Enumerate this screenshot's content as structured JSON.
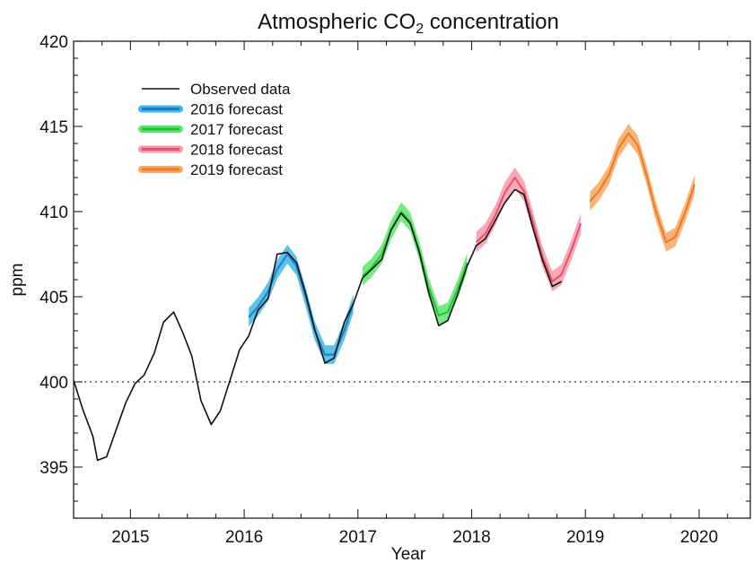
{
  "chart_data": {
    "type": "line",
    "title_main": "Atmospheric CO",
    "title_sub": "2",
    "title_rest": " concentration",
    "xlabel": "Year",
    "ylabel": "ppm",
    "xlim": [
      2014.5,
      2020.45
    ],
    "ylim": [
      392,
      420
    ],
    "xticks": [
      2015,
      2016,
      2017,
      2018,
      2019,
      2020
    ],
    "yticks": [
      395,
      400,
      405,
      410,
      415,
      420
    ],
    "x_minor_step": 0.25,
    "y_minor_step": 1,
    "reference_line": {
      "y": 400,
      "style": "dotted"
    },
    "legend_position": "top-left",
    "series": [
      {
        "name": "Observed data",
        "color": "#111111",
        "points": [
          [
            2014.5,
            400.1
          ],
          [
            2014.58,
            398.4
          ],
          [
            2014.67,
            396.8
          ],
          [
            2014.71,
            395.4
          ],
          [
            2014.79,
            395.6
          ],
          [
            2014.88,
            397.3
          ],
          [
            2014.96,
            398.8
          ],
          [
            2015.04,
            399.9
          ],
          [
            2015.12,
            400.4
          ],
          [
            2015.21,
            401.7
          ],
          [
            2015.29,
            403.5
          ],
          [
            2015.38,
            404.1
          ],
          [
            2015.46,
            402.9
          ],
          [
            2015.54,
            401.5
          ],
          [
            2015.62,
            398.9
          ],
          [
            2015.71,
            397.5
          ],
          [
            2015.79,
            398.3
          ],
          [
            2015.88,
            400.2
          ],
          [
            2015.96,
            401.9
          ],
          [
            2016.04,
            402.7
          ],
          [
            2016.12,
            404.2
          ],
          [
            2016.21,
            404.9
          ],
          [
            2016.29,
            407.5
          ],
          [
            2016.38,
            407.6
          ],
          [
            2016.46,
            407.0
          ],
          [
            2016.54,
            405.2
          ],
          [
            2016.62,
            403.1
          ],
          [
            2016.71,
            401.1
          ],
          [
            2016.79,
            401.4
          ],
          [
            2016.88,
            403.5
          ],
          [
            2016.96,
            404.6
          ],
          [
            2017.04,
            406.1
          ],
          [
            2017.12,
            406.6
          ],
          [
            2017.21,
            407.2
          ],
          [
            2017.29,
            408.9
          ],
          [
            2017.38,
            409.9
          ],
          [
            2017.46,
            409.3
          ],
          [
            2017.54,
            407.6
          ],
          [
            2017.62,
            405.3
          ],
          [
            2017.71,
            403.3
          ],
          [
            2017.79,
            403.6
          ],
          [
            2017.88,
            405.2
          ],
          [
            2017.96,
            406.8
          ],
          [
            2018.04,
            408.0
          ],
          [
            2018.12,
            408.4
          ],
          [
            2018.21,
            409.5
          ],
          [
            2018.29,
            410.5
          ],
          [
            2018.38,
            411.3
          ],
          [
            2018.46,
            411.0
          ],
          [
            2018.54,
            409.0
          ],
          [
            2018.62,
            407.2
          ],
          [
            2018.71,
            405.6
          ],
          [
            2018.79,
            405.9
          ]
        ]
      },
      {
        "name": "2016 forecast",
        "color": "#1f7fbf",
        "band_color": "#3cb8e8",
        "band_halfwidth": 0.55,
        "points": [
          [
            2016.04,
            403.8
          ],
          [
            2016.12,
            404.4
          ],
          [
            2016.21,
            405.3
          ],
          [
            2016.29,
            406.6
          ],
          [
            2016.38,
            407.5
          ],
          [
            2016.46,
            406.8
          ],
          [
            2016.54,
            405.0
          ],
          [
            2016.62,
            403.0
          ],
          [
            2016.71,
            401.6
          ],
          [
            2016.79,
            401.6
          ],
          [
            2016.88,
            403.0
          ],
          [
            2016.96,
            404.6
          ]
        ]
      },
      {
        "name": "2017 forecast",
        "color": "#22c23a",
        "band_color": "#5ce86a",
        "band_halfwidth": 0.55,
        "points": [
          [
            2017.04,
            406.2
          ],
          [
            2017.12,
            406.7
          ],
          [
            2017.21,
            407.5
          ],
          [
            2017.29,
            408.9
          ],
          [
            2017.38,
            410.0
          ],
          [
            2017.46,
            409.4
          ],
          [
            2017.54,
            407.7
          ],
          [
            2017.62,
            405.6
          ],
          [
            2017.71,
            403.9
          ],
          [
            2017.79,
            404.1
          ],
          [
            2017.88,
            405.5
          ],
          [
            2017.96,
            407.0
          ]
        ]
      },
      {
        "name": "2018 forecast",
        "color": "#e8506a",
        "band_color": "#f59aaa",
        "band_halfwidth": 0.6,
        "points": [
          [
            2018.04,
            408.2
          ],
          [
            2018.12,
            408.7
          ],
          [
            2018.21,
            409.8
          ],
          [
            2018.29,
            411.1
          ],
          [
            2018.38,
            412.0
          ],
          [
            2018.46,
            411.2
          ],
          [
            2018.54,
            409.4
          ],
          [
            2018.62,
            407.4
          ],
          [
            2018.71,
            405.9
          ],
          [
            2018.79,
            406.3
          ],
          [
            2018.88,
            407.8
          ],
          [
            2018.96,
            409.3
          ]
        ]
      },
      {
        "name": "2019 forecast",
        "color": "#f07820",
        "band_color": "#f8a860",
        "band_halfwidth": 0.55,
        "points": [
          [
            2019.04,
            410.6
          ],
          [
            2019.12,
            411.2
          ],
          [
            2019.21,
            412.2
          ],
          [
            2019.29,
            413.7
          ],
          [
            2019.38,
            414.6
          ],
          [
            2019.46,
            413.9
          ],
          [
            2019.54,
            412.1
          ],
          [
            2019.62,
            410.0
          ],
          [
            2019.71,
            408.2
          ],
          [
            2019.79,
            408.5
          ],
          [
            2019.88,
            410.0
          ],
          [
            2019.96,
            411.6
          ]
        ]
      }
    ]
  }
}
